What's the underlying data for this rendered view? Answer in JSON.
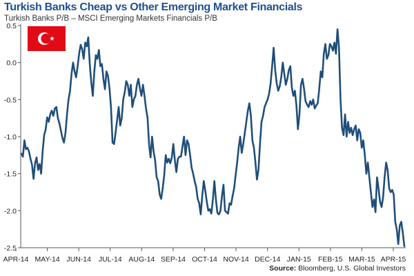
{
  "colors": {
    "title": "#1d4f91",
    "line": "#1f4e79",
    "flag_red": "#e30a17",
    "flag_white": "#ffffff"
  },
  "icons": {
    "flag": "turkey-flag-icon"
  },
  "source": {
    "label": "Source:",
    "text": "Bloomberg, U.S. Global Investors"
  },
  "chart_data": {
    "type": "line",
    "title": "Turkish Banks Cheap vs Other Emerging Market Financials",
    "subtitle": "Turkish Banks P/B – MSCI Emerging Markets Financials P/B",
    "xlabel": "",
    "ylabel": "",
    "ylim": [
      -2.5,
      0.5
    ],
    "yticks": [
      0.5,
      0.0,
      -0.5,
      -1.0,
      -1.5,
      -2.0,
      -2.5
    ],
    "ytick_labels": [
      "0.5",
      "0.0",
      "-0.5",
      "-1.0",
      "-1.5",
      "-2.0",
      "-2.5"
    ],
    "xticks": [
      "APR-14",
      "MAY-14",
      "JUN-14",
      "JUL-14",
      "AUG-14",
      "SEP-14",
      "OCT-14",
      "NOV-14",
      "DEC-14",
      "JAN-15",
      "FEB-15",
      "MAR-15",
      "APR-15"
    ],
    "grid": false,
    "legend": "none",
    "series": [
      {
        "values": [
          -1.23,
          -1.27,
          -1.05,
          -1.17,
          -1.15,
          -1.2,
          -1.3,
          -1.38,
          -1.57,
          -1.36,
          -1.28,
          -1.45,
          -1.37,
          -1.5,
          -1.2,
          -0.98,
          -0.9,
          -0.74,
          -0.8,
          -0.7,
          -0.65,
          -0.72,
          -0.62,
          -0.6,
          -0.75,
          -0.82,
          -0.92,
          -1.02,
          -1.08,
          -0.95,
          -0.7,
          -0.5,
          -0.38,
          -0.15,
          0.0,
          -0.12,
          -0.2,
          -0.05,
          0.12,
          0.24,
          0.18,
          0.05,
          0.27,
          0.22,
          0.34,
          -0.02,
          -0.27,
          -0.45,
          -0.12,
          0.1,
          0.05,
          0.17,
          -0.05,
          -0.02,
          -0.22,
          -0.36,
          -0.12,
          -0.18,
          -0.35,
          -0.61,
          -1.08,
          -1.1,
          -0.95,
          -0.77,
          -0.6,
          -0.85,
          -0.75,
          -0.5,
          -0.4,
          -0.25,
          -0.3,
          -0.45,
          -0.3,
          -0.6,
          -0.5,
          -0.45,
          -0.3,
          -0.22,
          -0.35,
          -0.45,
          -0.3,
          -0.45,
          -0.62,
          -0.74,
          -1.1,
          -1.28,
          -1.0,
          -1.2,
          -1.32,
          -1.55,
          -1.6,
          -1.78,
          -1.84,
          -1.7,
          -1.52,
          -1.25,
          -1.35,
          -1.3,
          -1.36,
          -1.28,
          -1.1,
          -1.32,
          -1.48,
          -1.3,
          -1.27,
          -1.27,
          -1.13,
          -1.0,
          -1.25,
          -1.05,
          -1.1,
          -1.25,
          -1.42,
          -1.5,
          -1.6,
          -1.68,
          -1.84,
          -1.9,
          -2.05,
          -1.8,
          -1.6,
          -1.73,
          -1.88,
          -2.0,
          -1.98,
          -2.04,
          -1.85,
          -1.6,
          -1.85,
          -2.03,
          -2.05,
          -2.0,
          -1.8,
          -1.65,
          -2.0,
          -2.02,
          -2.04,
          -1.9,
          -1.92,
          -1.8,
          -1.7,
          -1.52,
          -1.35,
          -1.15,
          -1.0,
          -1.22,
          -1.1,
          -0.95,
          -0.8,
          -0.65,
          -0.55,
          -0.72,
          -1.05,
          -1.15,
          -1.35,
          -1.58,
          -1.45,
          -1.1,
          -0.8,
          -0.72,
          -0.6,
          -0.55,
          -0.5,
          -0.42,
          -0.28,
          -0.05,
          0.2,
          -0.1,
          -0.28,
          -0.38,
          -0.32,
          -0.2,
          0.0,
          -0.15,
          -0.3,
          -0.22,
          -0.1,
          -0.05,
          -0.34,
          -0.45,
          -0.38,
          -0.58,
          -0.9,
          -0.7,
          -0.3,
          -0.22,
          -0.35,
          -0.52,
          -0.57,
          -0.6,
          -0.52,
          -0.57,
          -0.5,
          -0.62,
          -0.58,
          -0.55,
          -0.35,
          -0.12,
          -0.2,
          0.12,
          0.25,
          0.05,
          0.1,
          0.25,
          0.22,
          0.16,
          0.27,
          0.12,
          0.45,
          0.2,
          -0.5,
          -0.88,
          -0.98,
          -0.7,
          -1.0,
          -0.8,
          -0.95,
          -0.88,
          -0.98,
          -0.9,
          -0.85,
          -1.05,
          -0.9,
          -0.95,
          -1.15,
          -1.05,
          -1.25,
          -1.5,
          -1.35,
          -1.55,
          -1.75,
          -1.95,
          -1.85,
          -2.02,
          -1.55,
          -1.7,
          -1.88,
          -1.95,
          -1.82,
          -1.55,
          -1.35,
          -1.45,
          -1.7,
          -1.75,
          -1.72,
          -1.78,
          -2.15,
          -2.25,
          -2.45,
          -2.2,
          -2.15,
          -2.3,
          -2.48
        ]
      }
    ]
  }
}
